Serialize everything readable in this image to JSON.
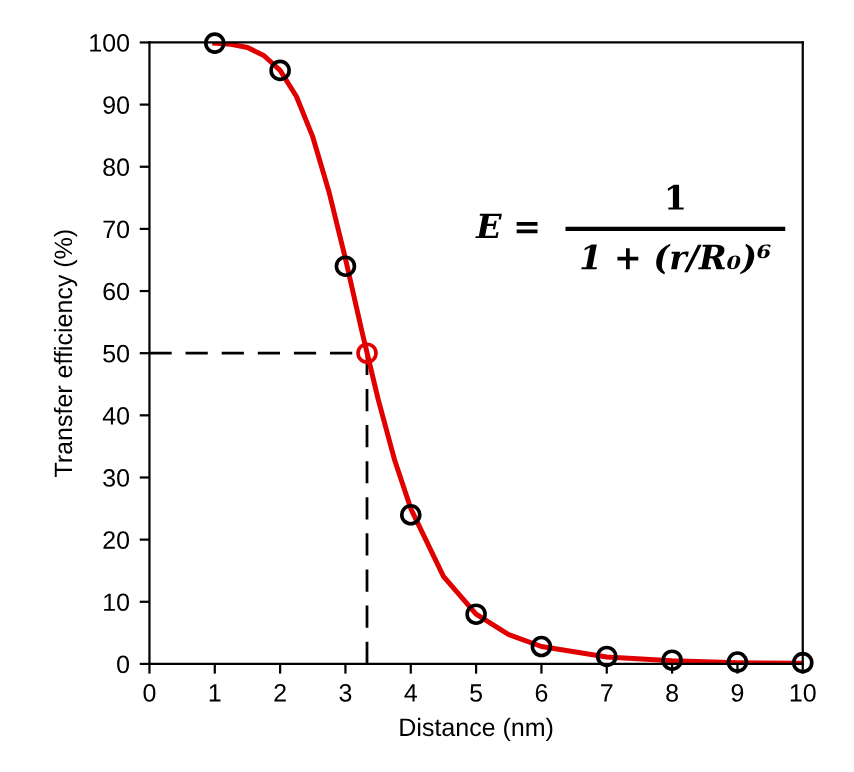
{
  "chart_data": {
    "type": "line",
    "xlabel": "Distance (nm)",
    "ylabel": "Transfer efficiency (%)",
    "xlim": [
      0,
      10
    ],
    "xticks": [
      0,
      1,
      2,
      3,
      4,
      5,
      6,
      7,
      8,
      9,
      10
    ],
    "ylim": [
      0,
      100
    ],
    "yticks": [
      0,
      10,
      20,
      30,
      40,
      50,
      60,
      70,
      80,
      90,
      100
    ],
    "grid": false,
    "legend": false,
    "series": [
      {
        "color": "#e00000",
        "marker": "none",
        "line_style": "solid",
        "x": [
          1,
          1.25,
          1.5,
          1.75,
          2,
          2.25,
          2.5,
          2.75,
          3,
          3.25,
          3.5,
          3.75,
          4,
          4.5,
          5,
          5.5,
          6,
          7,
          8,
          9,
          10
        ],
        "values": [
          99.9,
          99.7,
          99.2,
          97.9,
          95.5,
          91.3,
          84.8,
          75.9,
          65.2,
          53.6,
          42.6,
          32.9,
          25.0,
          14.1,
          8.0,
          4.7,
          2.8,
          1.1,
          0.5,
          0.2,
          0.1
        ]
      },
      {
        "type": "scatter",
        "marker": "circle",
        "x": [
          1,
          2,
          3,
          3.33,
          4,
          5,
          6,
          7,
          8,
          9,
          10
        ],
        "values": [
          99.9,
          95.5,
          64,
          50,
          24,
          8,
          2.8,
          1.2,
          0.6,
          0.3,
          0.2
        ],
        "colors": [
          "#000000",
          "#000000",
          "#000000",
          "#e00000",
          "#000000",
          "#000000",
          "#000000",
          "#000000",
          "#000000",
          "#000000",
          "#000000"
        ]
      }
    ],
    "ref_lines": [
      {
        "axis": "y",
        "value": 50,
        "color": "#000000",
        "line_style": "dashed"
      },
      {
        "axis": "x",
        "value": 3.33,
        "color": "#000000",
        "line_style": "dashed"
      }
    ],
    "annotations": [
      "E =",
      "1",
      "1 + (r/R₀)⁶"
    ]
  }
}
